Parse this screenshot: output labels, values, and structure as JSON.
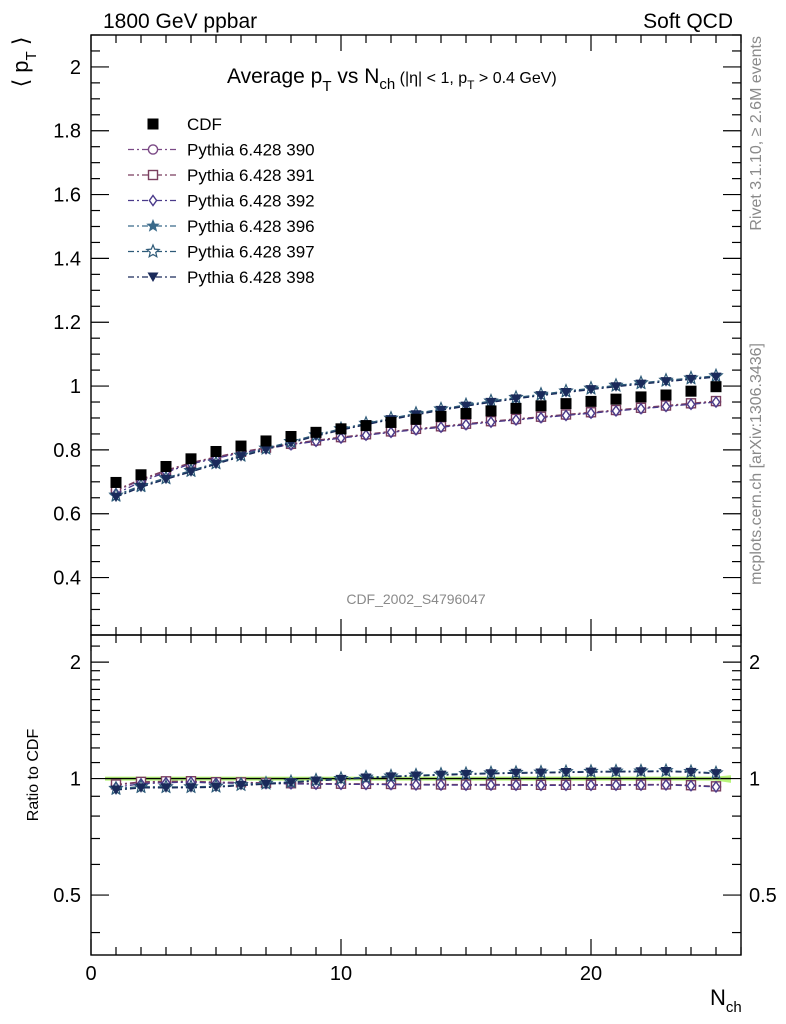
{
  "header": {
    "left": "1800 GeV ppbar",
    "right": "Soft QCD"
  },
  "side_labels": {
    "rivet": "Rivet 3.1.10, ≥ 2.6M events",
    "mcplots": "mcplots.cern.ch [arXiv:1306.3436]"
  },
  "chart_data": {
    "type": "scatter",
    "title_main": "Average p",
    "title_sub_T": "T",
    "title_vs": " vs N",
    "title_sub_ch": "ch",
    "title_cuts_a": " (|η| < 1, p",
    "title_cuts_T": "T",
    "title_cuts_b": " > 0.4 GeV)",
    "ylabel_main": "⟨ p",
    "ylabel_sub": "T",
    "ylabel_close": " ⟩",
    "xlabel_main": "N",
    "xlabel_sub": "ch",
    "ylabel_ratio": "Ratio to CDF",
    "analysis_id": "CDF_2002_S4796047",
    "xlim": [
      0,
      26
    ],
    "ylim_main": [
      0.22,
      2.1
    ],
    "ylim_ratio": [
      0.35,
      2.35
    ],
    "ratio_log": true,
    "xticks": [
      "0",
      "10",
      "20"
    ],
    "xtick_values": [
      0,
      10,
      20
    ],
    "yticks_main": [
      "0.4",
      "0.6",
      "0.8",
      "1",
      "1.2",
      "1.4",
      "1.6",
      "1.8",
      "2"
    ],
    "ytick_main_values": [
      0.4,
      0.6,
      0.8,
      1.0,
      1.2,
      1.4,
      1.6,
      1.8,
      2.0
    ],
    "yticks_ratio": [
      "0.5",
      "1",
      "2"
    ],
    "ytick_ratio_values": [
      0.5,
      1.0,
      2.0
    ],
    "x": [
      1,
      2,
      3,
      4,
      5,
      6,
      7,
      8,
      9,
      10,
      11,
      12,
      13,
      14,
      15,
      16,
      17,
      18,
      19,
      20,
      21,
      22,
      23,
      24,
      25
    ],
    "data": {
      "name": "CDF",
      "values": [
        0.698,
        0.722,
        0.748,
        0.772,
        0.795,
        0.812,
        0.828,
        0.842,
        0.855,
        0.866,
        0.876,
        0.886,
        0.896,
        0.905,
        0.914,
        0.922,
        0.93,
        0.938,
        0.945,
        0.952,
        0.959,
        0.966,
        0.972,
        0.984,
        0.998
      ]
    },
    "series": [
      {
        "name": "Pythia 6.428 390",
        "color": "#7b4a86",
        "marker": "circle-open",
        "values": [
          0.672,
          0.705,
          0.733,
          0.758,
          0.776,
          0.792,
          0.805,
          0.817,
          0.828,
          0.838,
          0.847,
          0.856,
          0.864,
          0.872,
          0.88,
          0.888,
          0.895,
          0.902,
          0.909,
          0.916,
          0.923,
          0.93,
          0.937,
          0.944,
          0.951
        ]
      },
      {
        "name": "Pythia 6.428 391",
        "color": "#7a3f5f",
        "marker": "square-open",
        "values": [
          0.674,
          0.708,
          0.736,
          0.76,
          0.778,
          0.794,
          0.807,
          0.819,
          0.83,
          0.84,
          0.849,
          0.858,
          0.866,
          0.874,
          0.882,
          0.89,
          0.897,
          0.904,
          0.911,
          0.918,
          0.925,
          0.932,
          0.939,
          0.946,
          0.953
        ]
      },
      {
        "name": "Pythia 6.428 392",
        "color": "#4a3a8a",
        "marker": "diamond-open",
        "values": [
          0.663,
          0.7,
          0.73,
          0.756,
          0.774,
          0.79,
          0.804,
          0.816,
          0.827,
          0.837,
          0.846,
          0.855,
          0.863,
          0.871,
          0.879,
          0.887,
          0.894,
          0.901,
          0.908,
          0.915,
          0.922,
          0.929,
          0.936,
          0.943,
          0.95
        ]
      },
      {
        "name": "Pythia 6.428 396",
        "color": "#3a6a8a",
        "marker": "star-filled",
        "values": [
          0.655,
          0.685,
          0.71,
          0.733,
          0.757,
          0.781,
          0.803,
          0.824,
          0.845,
          0.864,
          0.881,
          0.897,
          0.912,
          0.926,
          0.939,
          0.951,
          0.962,
          0.972,
          0.982,
          0.991,
          1.0,
          1.008,
          1.016,
          1.023,
          1.03
        ]
      },
      {
        "name": "Pythia 6.428 397",
        "color": "#2e5a78",
        "marker": "star-open",
        "values": [
          0.658,
          0.688,
          0.712,
          0.735,
          0.759,
          0.783,
          0.805,
          0.826,
          0.847,
          0.866,
          0.883,
          0.899,
          0.914,
          0.928,
          0.941,
          0.953,
          0.964,
          0.974,
          0.984,
          0.993,
          1.002,
          1.01,
          1.018,
          1.025,
          1.032
        ]
      },
      {
        "name": "Pythia 6.428 398",
        "color": "#1a2a5a",
        "marker": "triangle-down-filled",
        "values": [
          0.652,
          0.683,
          0.708,
          0.731,
          0.755,
          0.779,
          0.801,
          0.822,
          0.843,
          0.862,
          0.879,
          0.895,
          0.91,
          0.924,
          0.937,
          0.949,
          0.96,
          0.97,
          0.98,
          0.989,
          0.998,
          1.006,
          1.014,
          1.021,
          1.028
        ]
      }
    ],
    "legend_position": "top-left"
  }
}
